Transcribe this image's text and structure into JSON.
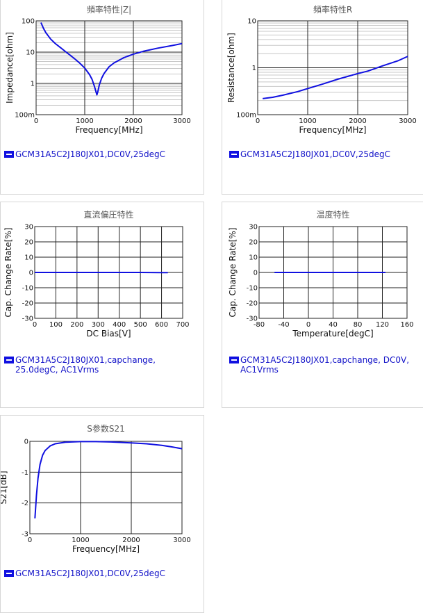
{
  "charts": [
    {
      "chart_data": {
        "type": "line",
        "title": "頻率特性|Z|",
        "xlabel": "Frequency[MHz]",
        "ylabel": "Impedance[ohm]",
        "xlim": [
          0,
          3000
        ],
        "ylim": [
          0.1,
          100
        ],
        "yscale": "log",
        "xticks": [
          "0",
          "1000",
          "2000",
          "3000"
        ],
        "yticks": [
          "100m",
          "1",
          "10",
          "100"
        ],
        "grid": true,
        "series": [
          {
            "name": "GCM31A5C2J180JX01,DC0V,25degC",
            "color": "#1010e0",
            "x": [
              100,
              150,
              200,
              300,
              400,
              500,
              600,
              700,
              800,
              900,
              1000,
              1100,
              1150,
              1200,
              1230,
              1250,
              1270,
              1300,
              1350,
              1400,
              1500,
              1600,
              1800,
              2000,
              2200,
              2500,
              2800,
              3000
            ],
            "y": [
              88,
              58,
              42,
              26,
              18.5,
              14,
              10.5,
              8,
              6,
              4.4,
              3.1,
              1.9,
              1.35,
              0.8,
              0.55,
              0.43,
              0.55,
              0.9,
              1.5,
              2.1,
              3.4,
              4.5,
              6.6,
              8.6,
              10.6,
              13.4,
              16.3,
              18.8
            ]
          }
        ]
      },
      "legend": [
        "GCM31A5C2J180JX01,DC0V,25degC"
      ]
    },
    {
      "chart_data": {
        "type": "line",
        "title": "頻率特性R",
        "xlabel": "Frequency[MHz]",
        "ylabel": "Resistance[ohm]",
        "xlim": [
          0,
          3000
        ],
        "ylim": [
          0.1,
          10
        ],
        "yscale": "log",
        "xticks": [
          "0",
          "1000",
          "2000",
          "3000"
        ],
        "yticks": [
          "100m",
          "1",
          "10"
        ],
        "grid": true,
        "series": [
          {
            "name": "GCM31A5C2J180JX01,DC0V,25degC",
            "color": "#1010e0",
            "x": [
              100,
              300,
              500,
              800,
              1000,
              1300,
              1600,
              2000,
              2200,
              2500,
              2800,
              3000
            ],
            "y": [
              0.22,
              0.235,
              0.26,
              0.31,
              0.36,
              0.45,
              0.57,
              0.75,
              0.85,
              1.1,
              1.4,
              1.75
            ]
          }
        ]
      },
      "legend": [
        "GCM31A5C2J180JX01,DC0V,25degC"
      ]
    },
    {
      "chart_data": {
        "type": "line",
        "title": "直流偏圧特性",
        "xlabel": "DC Bias[V]",
        "ylabel": "Cap. Change Rate[%]",
        "xlim": [
          0,
          700
        ],
        "ylim": [
          -30,
          30
        ],
        "yscale": "linear",
        "xticks": [
          "0",
          "100",
          "200",
          "300",
          "400",
          "500",
          "600",
          "700"
        ],
        "yticks": [
          "-30",
          "-20",
          "-10",
          "0",
          "10",
          "20",
          "30"
        ],
        "grid": true,
        "series": [
          {
            "name": "GCM31A5C2J180JX01,capchange, 25.0degC, AC1Vrms",
            "color": "#1010e0",
            "x": [
              0,
              100,
              200,
              300,
              400,
              500,
              600,
              630
            ],
            "y": [
              0,
              0,
              0,
              0,
              0,
              0,
              -0.1,
              -0.1
            ]
          }
        ]
      },
      "legend": [
        "GCM31A5C2J180JX01,capchange,",
        "25.0degC, AC1Vrms"
      ]
    },
    {
      "chart_data": {
        "type": "line",
        "title": "温度特性",
        "xlabel": "Temperature[degC]",
        "ylabel": "Cap. Change Rate[%]",
        "xlim": [
          -80,
          160
        ],
        "ylim": [
          -30,
          30
        ],
        "yscale": "linear",
        "xticks": [
          "-80",
          "-40",
          "0",
          "40",
          "80",
          "120",
          "160"
        ],
        "yticks": [
          "-30",
          "-20",
          "-10",
          "0",
          "10",
          "20",
          "30"
        ],
        "grid": true,
        "series": [
          {
            "name": "GCM31A5C2J180JX01,capchange, DC0V, AC1Vrms",
            "color": "#1010e0",
            "x": [
              -55,
              -25,
              0,
              25,
              50,
              85,
              105,
              125
            ],
            "y": [
              0,
              0,
              0,
              0,
              0,
              0,
              0,
              0
            ]
          }
        ]
      },
      "legend": [
        "GCM31A5C2J180JX01,capchange, DC0V,",
        "AC1Vrms"
      ]
    },
    {
      "chart_data": {
        "type": "line",
        "title": "S参数S21",
        "xlabel": "Frequency[MHz]",
        "ylabel": "S21[dB]",
        "xlim": [
          0,
          3000
        ],
        "ylim": [
          -3,
          0
        ],
        "yscale": "linear",
        "xticks": [
          "0",
          "1000",
          "2000",
          "3000"
        ],
        "yticks": [
          "-3",
          "-2",
          "-1",
          "0"
        ],
        "grid": true,
        "series": [
          {
            "name": "GCM31A5C2J180JX01,DC0V,25degC",
            "color": "#1010e0",
            "x": [
              100,
              130,
              160,
              200,
              250,
              300,
              400,
              500,
              700,
              1000,
              1300,
              1600,
              2000,
              2300,
              2600,
              2800,
              3000
            ],
            "y": [
              -2.5,
              -1.75,
              -1.2,
              -0.75,
              -0.45,
              -0.3,
              -0.15,
              -0.08,
              -0.03,
              -0.01,
              -0.01,
              -0.02,
              -0.05,
              -0.08,
              -0.13,
              -0.18,
              -0.24
            ]
          }
        ]
      },
      "legend": [
        "GCM31A5C2J180JX01,DC0V,25degC"
      ]
    }
  ]
}
